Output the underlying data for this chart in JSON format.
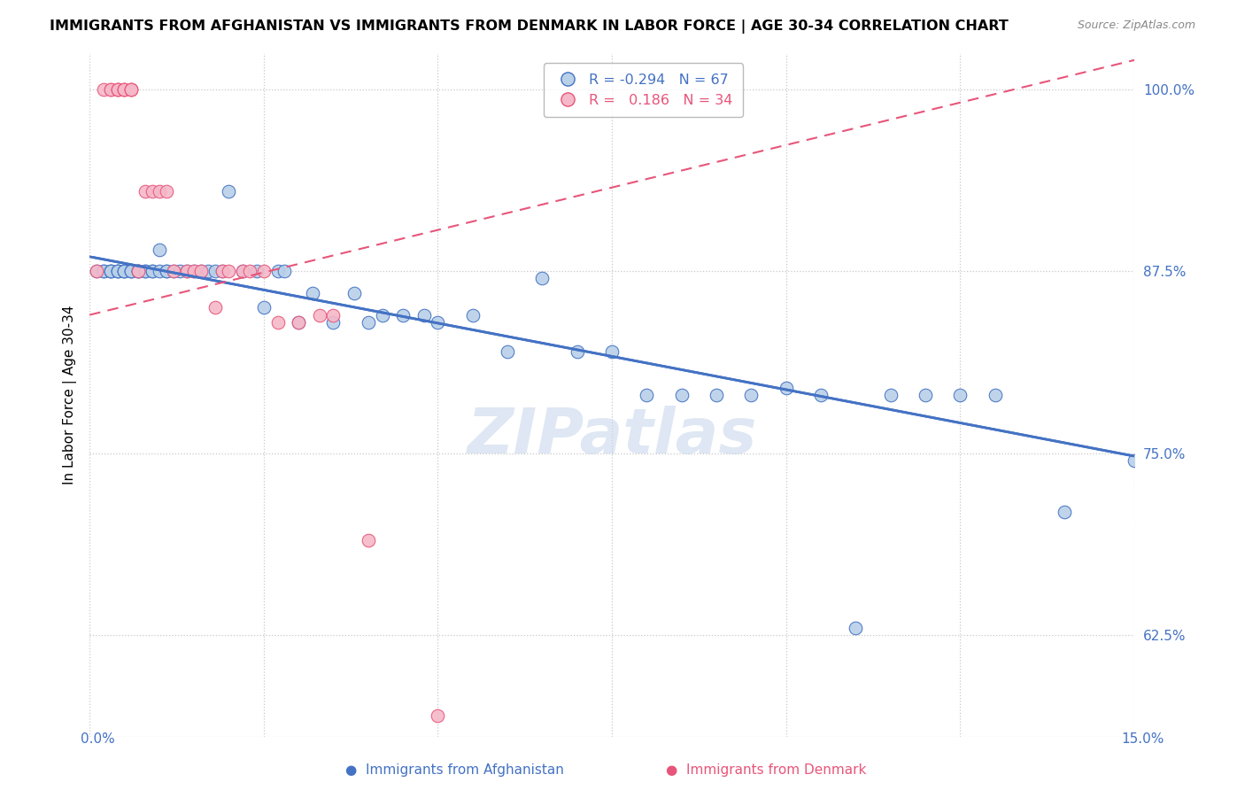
{
  "title": "IMMIGRANTS FROM AFGHANISTAN VS IMMIGRANTS FROM DENMARK IN LABOR FORCE | AGE 30-34 CORRELATION CHART",
  "source": "Source: ZipAtlas.com",
  "ylabel": "In Labor Force | Age 30-34",
  "yticks": [
    0.625,
    0.75,
    0.875,
    1.0
  ],
  "ytick_labels": [
    "62.5%",
    "75.0%",
    "87.5%",
    "100.0%"
  ],
  "xlim": [
    0.0,
    0.15
  ],
  "ylim": [
    0.555,
    1.025
  ],
  "legend_r_afg": "-0.294",
  "legend_n_afg": "67",
  "legend_r_den": "0.186",
  "legend_n_den": "34",
  "afg_color": "#b8d0e8",
  "den_color": "#f5b8c8",
  "afg_line_color": "#4472c4",
  "den_line_color": "#e8557a",
  "watermark": "ZIPatlas",
  "afg_x": [
    0.001,
    0.002,
    0.002,
    0.003,
    0.003,
    0.003,
    0.004,
    0.004,
    0.004,
    0.005,
    0.005,
    0.005,
    0.006,
    0.006,
    0.006,
    0.007,
    0.007,
    0.007,
    0.008,
    0.008,
    0.009,
    0.009,
    0.01,
    0.01,
    0.011,
    0.011,
    0.012,
    0.013,
    0.014,
    0.015,
    0.016,
    0.017,
    0.018,
    0.019,
    0.02,
    0.022,
    0.024,
    0.025,
    0.027,
    0.028,
    0.03,
    0.032,
    0.035,
    0.038,
    0.04,
    0.042,
    0.045,
    0.048,
    0.05,
    0.055,
    0.06,
    0.065,
    0.07,
    0.075,
    0.08,
    0.085,
    0.09,
    0.095,
    0.1,
    0.105,
    0.11,
    0.115,
    0.12,
    0.125,
    0.13,
    0.14,
    0.15
  ],
  "afg_y": [
    0.875,
    0.875,
    0.875,
    0.875,
    0.875,
    0.875,
    0.875,
    0.875,
    0.875,
    0.875,
    0.875,
    0.875,
    0.875,
    0.875,
    0.875,
    0.875,
    0.875,
    0.875,
    0.875,
    0.875,
    0.875,
    0.875,
    0.89,
    0.875,
    0.875,
    0.875,
    0.875,
    0.875,
    0.875,
    0.875,
    0.875,
    0.875,
    0.875,
    0.875,
    0.93,
    0.875,
    0.875,
    0.85,
    0.875,
    0.875,
    0.84,
    0.86,
    0.84,
    0.86,
    0.84,
    0.845,
    0.845,
    0.845,
    0.84,
    0.845,
    0.82,
    0.87,
    0.82,
    0.82,
    0.79,
    0.79,
    0.79,
    0.79,
    0.795,
    0.79,
    0.63,
    0.79,
    0.79,
    0.79,
    0.79,
    0.71,
    0.745
  ],
  "den_x": [
    0.001,
    0.002,
    0.003,
    0.003,
    0.004,
    0.004,
    0.004,
    0.005,
    0.005,
    0.005,
    0.006,
    0.006,
    0.006,
    0.007,
    0.008,
    0.009,
    0.01,
    0.011,
    0.012,
    0.014,
    0.015,
    0.016,
    0.018,
    0.019,
    0.02,
    0.022,
    0.023,
    0.025,
    0.027,
    0.03,
    0.033,
    0.035,
    0.04,
    0.05
  ],
  "den_y": [
    0.875,
    1.0,
    1.0,
    1.0,
    1.0,
    1.0,
    1.0,
    1.0,
    1.0,
    1.0,
    1.0,
    1.0,
    1.0,
    0.875,
    0.93,
    0.93,
    0.93,
    0.93,
    0.875,
    0.875,
    0.875,
    0.875,
    0.85,
    0.875,
    0.875,
    0.875,
    0.875,
    0.875,
    0.84,
    0.84,
    0.845,
    0.845,
    0.69,
    0.57
  ],
  "afg_trend_x0": 0.0,
  "afg_trend_y0": 0.885,
  "afg_trend_x1": 0.15,
  "afg_trend_y1": 0.748,
  "den_trend_x0": 0.0,
  "den_trend_y0": 0.845,
  "den_trend_x1": 0.15,
  "den_trend_y1": 1.02
}
